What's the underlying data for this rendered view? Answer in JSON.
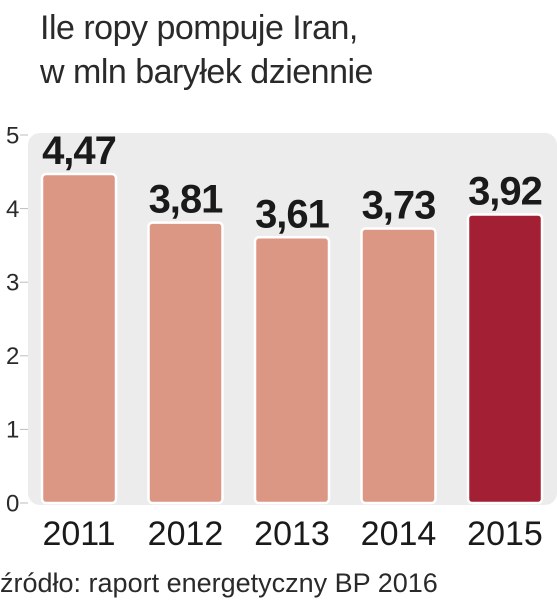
{
  "title_line1": "Ile ropy pompuje Iran,",
  "title_line2": "w mln baryłek dziennie",
  "source": "źródło: raport energetyczny BP 2016",
  "colors": {
    "panel": "#ececec",
    "bar": "#dc9684",
    "highlight": "#a31f33",
    "text": "#2a2a2a"
  },
  "chart_data": {
    "type": "bar",
    "title": "Ile ropy pompuje Iran, w mln baryłek dziennie",
    "categories": [
      "2011",
      "2012",
      "2013",
      "2014",
      "2015"
    ],
    "values": [
      4.47,
      3.81,
      3.61,
      3.73,
      3.92
    ],
    "value_labels": [
      "4,47",
      "3,81",
      "3,61",
      "3,73",
      "3,92"
    ],
    "highlighted_category": "2015",
    "yticks": [
      "0",
      "1",
      "2",
      "3",
      "4",
      "5"
    ],
    "ylim": [
      0,
      5
    ],
    "grid": false,
    "legend": "none"
  }
}
